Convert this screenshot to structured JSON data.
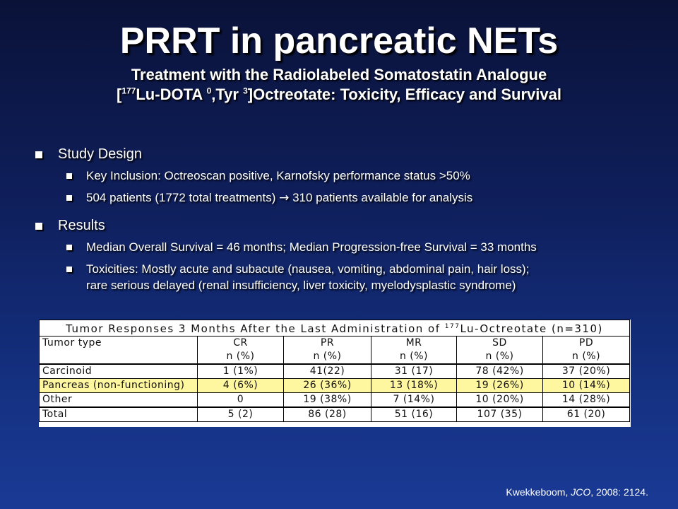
{
  "title": "PRRT in pancreatic NETs",
  "subtitle": {
    "line1": "Treatment with the Radiolabeled Somatostatin Analogue",
    "line2_open": "[",
    "line2_sup1": "177",
    "line2_a": "Lu-DOTA ",
    "line2_sup2": "0",
    "line2_b": ",Tyr ",
    "line2_sup3": "3",
    "line2_c": "]Octreotate: Toxicity, Efficacy and Survival"
  },
  "bullets": {
    "study_design": "Study Design",
    "inclusion": "Key Inclusion: Octreoscan positive, Karnofsky performance status >50%",
    "patients_a": "504 patients (1772 total treatments) ",
    "patients_arrow": "→",
    "patients_b": " 310 patients available for analysis",
    "results": "Results",
    "survival": "Median Overall Survival = 46 months; Median Progression-free Survival = 33 months",
    "toxicities_1": "Toxicities: Mostly acute and subacute (nausea, vomiting, abdominal pain, hair loss);",
    "toxicities_2": "rare serious delayed (renal insufficiency, liver toxicity, myelodysplastic syndrome)"
  },
  "table": {
    "caption_a": "Tumor Responses 3 Months After the Last Administration of ",
    "caption_sup": "177",
    "caption_b": "Lu-Octreotate (n=310)",
    "header_row1": [
      "Tumor type",
      "CR",
      "PR",
      "MR",
      "SD",
      "PD"
    ],
    "header_row2": [
      "",
      "n (%)",
      "n (%)",
      "n (%)",
      "n (%)",
      "n (%)"
    ],
    "rows": [
      [
        "Carcinoid",
        "1 (1%)",
        "41(22)",
        "31 (17)",
        "78 (42%)",
        "37 (20%)"
      ],
      [
        "Pancreas (non-functioning)",
        "4 (6%)",
        "26 (36%)",
        "13 (18%)",
        "19 (26%)",
        "10 (14%)"
      ],
      [
        "Other",
        "0",
        "19 (38%)",
        "7 (14%)",
        "10 (20%)",
        "14 (28%)"
      ]
    ],
    "total": [
      "Total",
      "5 (2)",
      "86 (28)",
      "51 (16)",
      "107 (35)",
      "61 (20)"
    ],
    "highlight_color": "#fff7a0"
  },
  "citation": {
    "author": "Kwekkeboom, ",
    "journal": "JCO",
    "rest": ", 2008: 2124."
  }
}
